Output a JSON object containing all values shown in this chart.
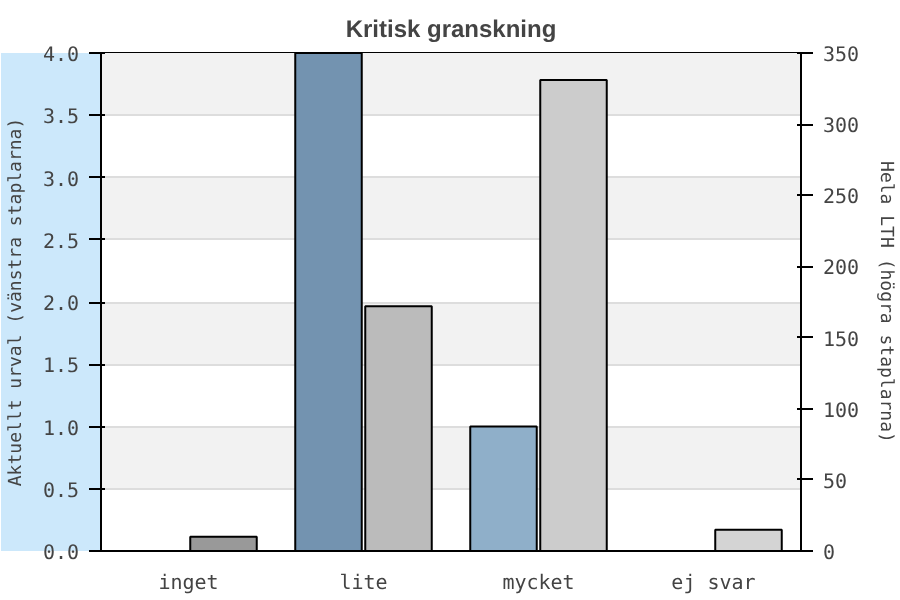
{
  "chart_data": {
    "type": "bar",
    "title": "Kritisk granskning",
    "ylabel": "Aktuellt urval (vänstra staplarna)",
    "y2label": "Hela LTH (högra staplarna)",
    "categories": [
      "inget",
      "lite",
      "mycket",
      "ej svar"
    ],
    "series": [
      {
        "colors": [
          "#7393b0",
          "#7393b0",
          "#8fafc9",
          "#8fafc9"
        ],
        "values": [
          0,
          4,
          1,
          0
        ]
      },
      {
        "axis": "y2",
        "colors": [
          "#999999",
          "#bbbbbb",
          "#cccccc",
          "#d4d4d4"
        ],
        "values": [
          10,
          172,
          331,
          15
        ]
      }
    ],
    "ylim": [
      0,
      4
    ],
    "yticks": [
      {
        "value": 0,
        "label": "0.0"
      },
      0.5,
      {
        "value": 1,
        "label": "1.0"
      },
      1.5,
      {
        "value": 2,
        "label": "2.0"
      },
      2.5,
      {
        "value": 3,
        "label": "3.0"
      },
      3.5,
      {
        "value": 4,
        "label": "4.0"
      }
    ],
    "y2lim": [
      0,
      350
    ],
    "y2ticks": [
      0,
      50,
      100,
      150,
      200,
      250,
      300,
      350
    ],
    "grid": "y"
  }
}
